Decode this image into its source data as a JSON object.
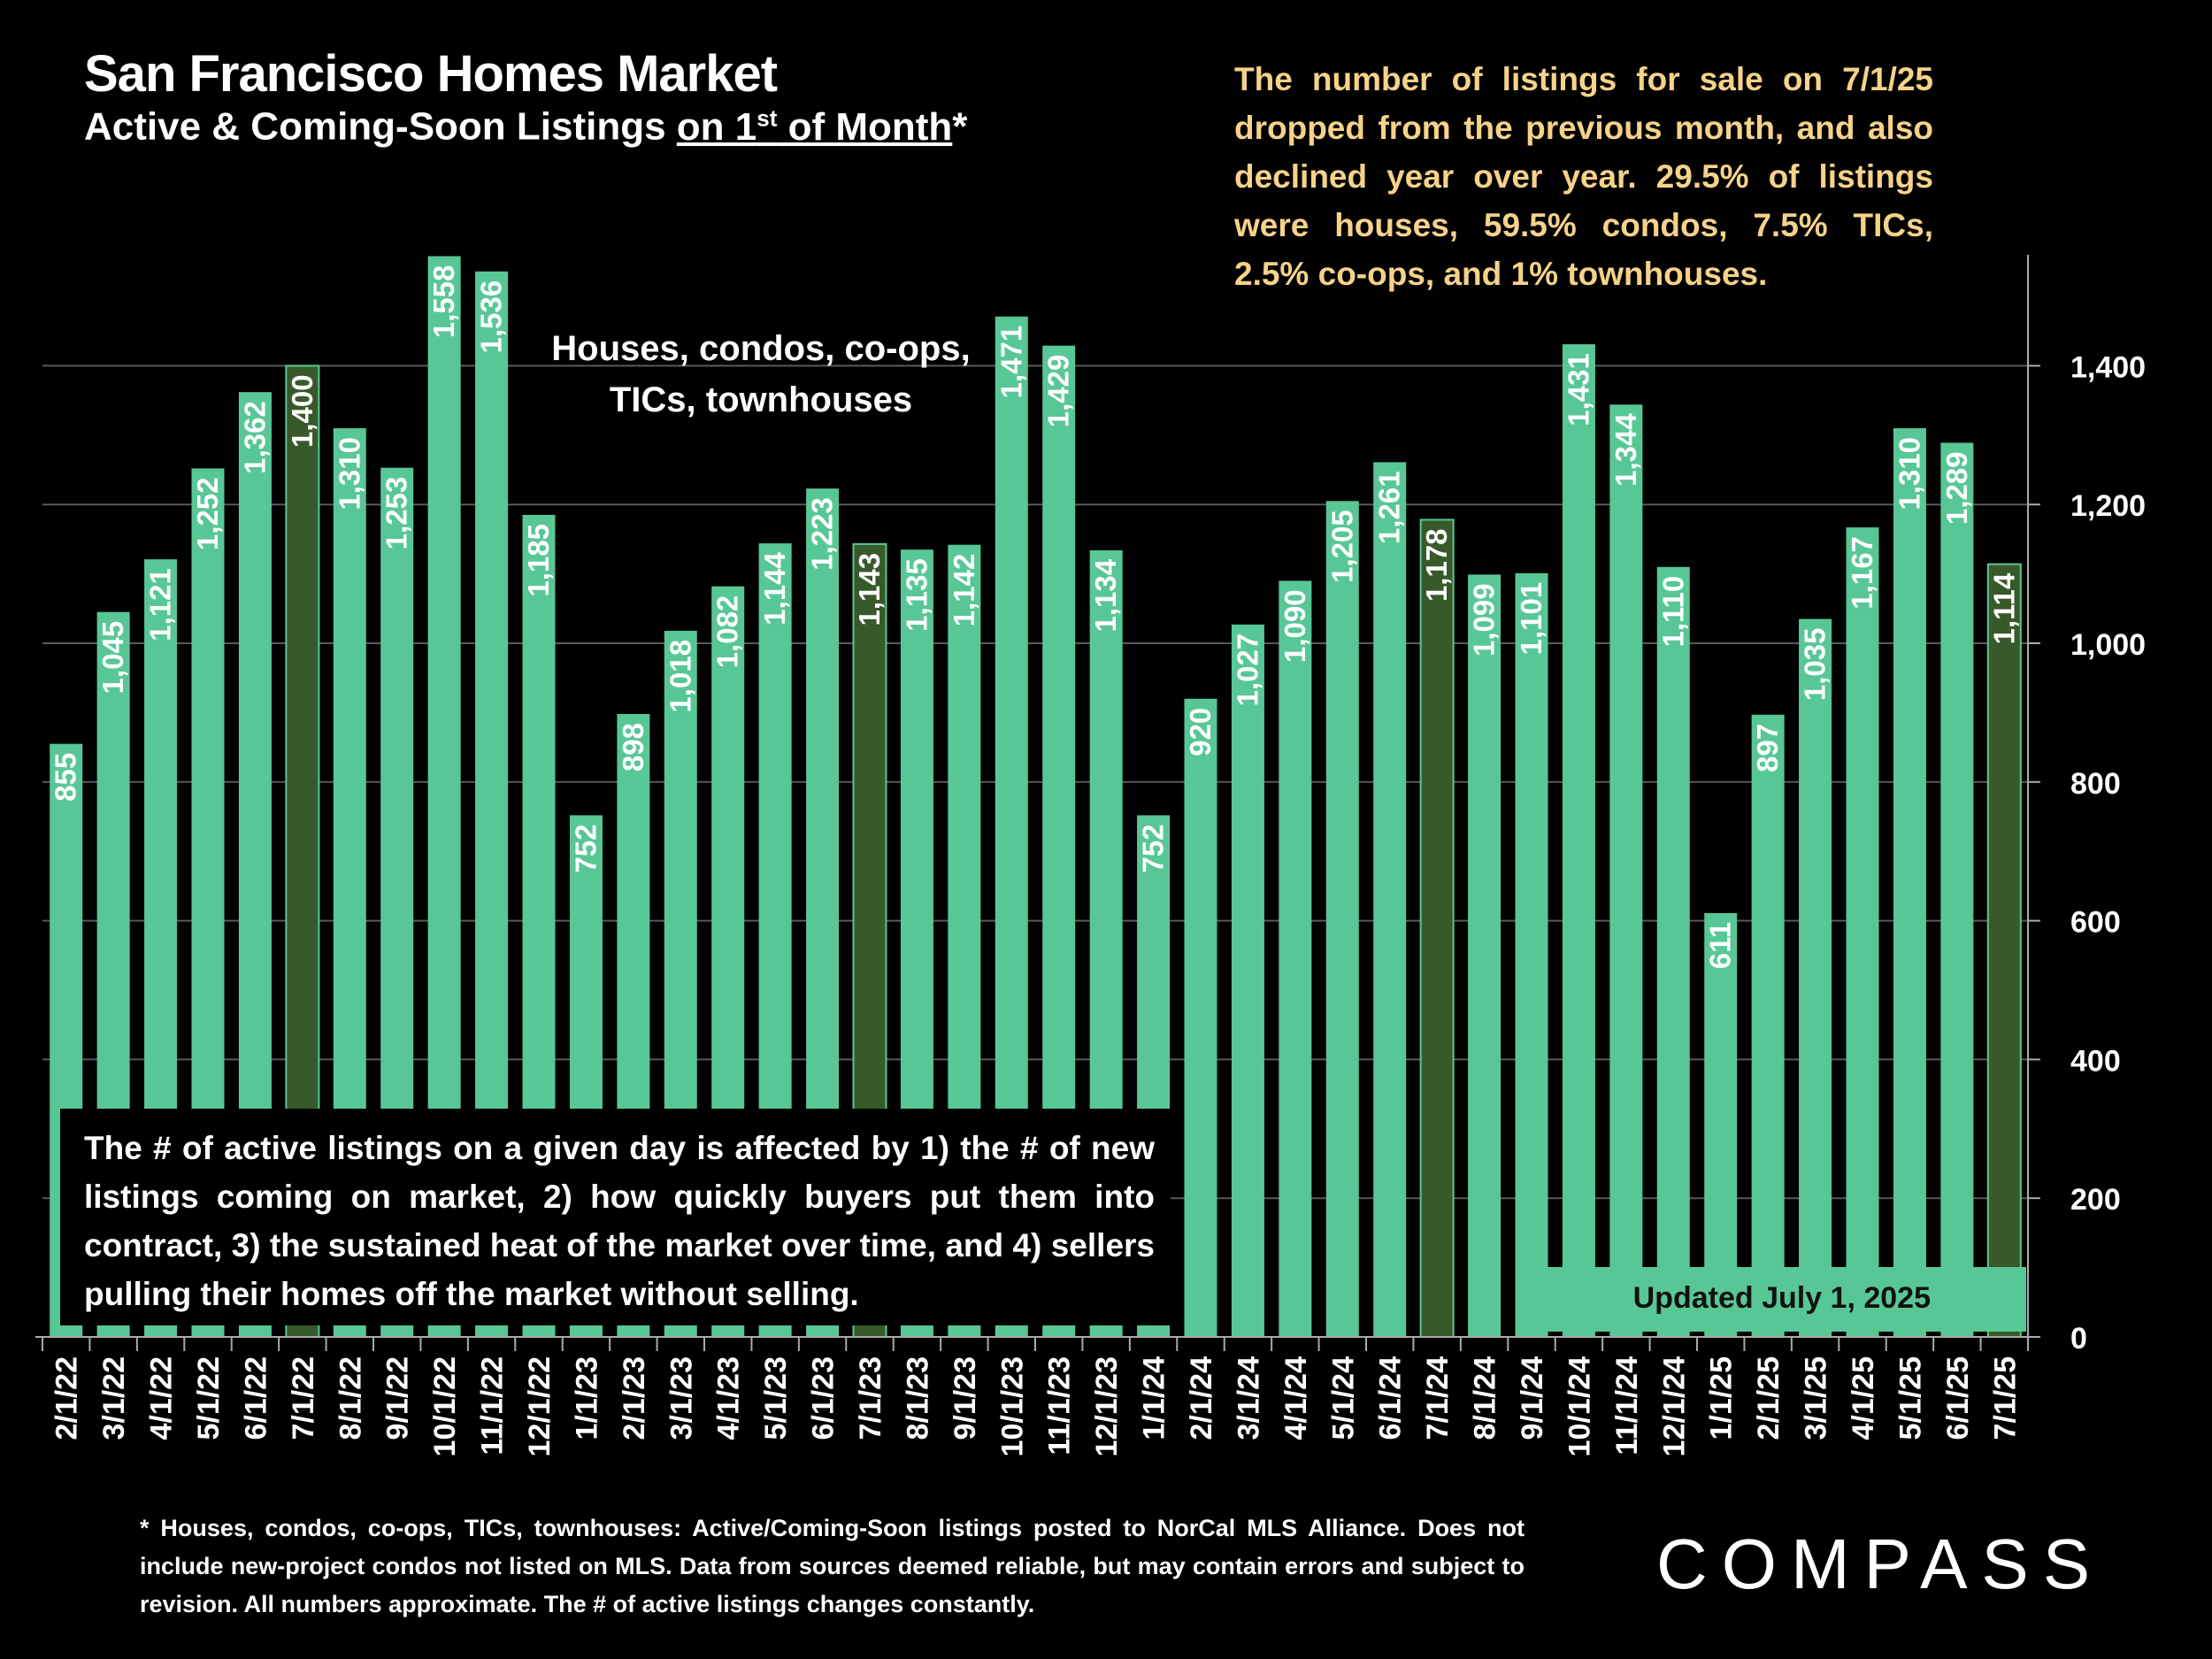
{
  "header": {
    "title": "San Francisco Homes Market",
    "subtitle_pre": "Active & Coming-Soon Listings ",
    "subtitle_under_a": "on 1",
    "subtitle_sup": "st",
    "subtitle_under_b": " of Month",
    "subtitle_post": "*"
  },
  "insight_text": "The number of listings for sale on 7/1/25 dropped from the previous month, and also declined year over year. 29.5% of listings were houses, 59.5% condos, 7.5% TICs, 2.5% co-ops, and 1% townhouses.",
  "series_note": {
    "line1": "Houses, condos, co-ops,",
    "line2": "TICs, townhouses"
  },
  "explain_text": "The # of active listings on a given day is affected by 1) the # of new listings coming on market, 2) how quickly buyers put them into contract, 3) the sustained heat of the market over time, and 4) sellers pulling their homes off the market without selling.",
  "updated_label": "Updated July 1, 2025",
  "footnote": "* Houses, condos, co-ops, TICs, townhouses: Active/Coming-Soon listings posted to NorCal MLS Alliance. Does not include new-project condos not listed on MLS. Data from sources deemed reliable, but may contain errors and subject to revision. All numbers approximate. The # of active listings changes constantly.",
  "logo_text": "COMPASS",
  "colors": {
    "bar": "#58c796",
    "highlight_bar": "#385a2a",
    "grid": "#595959",
    "insight": "#f6d28a"
  },
  "chart_data": {
    "type": "bar",
    "title": "San Francisco Homes Market",
    "ylabel": "Active & Coming-Soon Listings",
    "ylim": [
      0,
      1560
    ],
    "yticks": [
      0,
      200,
      400,
      600,
      800,
      1000,
      1200,
      1400
    ],
    "ytick_labels": [
      "0",
      "200",
      "400",
      "600",
      "800",
      "1,000",
      "1,200",
      "1,400"
    ],
    "categories": [
      "2/1/22",
      "3/1/22",
      "4/1/22",
      "5/1/22",
      "6/1/22",
      "7/1/22",
      "8/1/22",
      "9/1/22",
      "10/1/22",
      "11/1/22",
      "12/1/22",
      "1/1/23",
      "2/1/23",
      "3/1/23",
      "4/1/23",
      "5/1/23",
      "6/1/23",
      "7/1/23",
      "8/1/23",
      "9/1/23",
      "10/1/23",
      "11/1/23",
      "12/1/23",
      "1/1/24",
      "2/1/24",
      "3/1/24",
      "4/1/24",
      "5/1/24",
      "6/1/24",
      "7/1/24",
      "8/1/24",
      "9/1/24",
      "10/1/24",
      "11/1/24",
      "12/1/24",
      "1/1/25",
      "2/1/25",
      "3/1/25",
      "4/1/25",
      "5/1/25",
      "6/1/25",
      "7/1/25"
    ],
    "values": [
      855,
      1045,
      1121,
      1252,
      1362,
      1400,
      1310,
      1253,
      1558,
      1536,
      1185,
      752,
      898,
      1018,
      1082,
      1144,
      1223,
      1143,
      1135,
      1142,
      1471,
      1429,
      1134,
      752,
      920,
      1027,
      1090,
      1205,
      1261,
      1178,
      1099,
      1101,
      1431,
      1344,
      1110,
      611,
      897,
      1035,
      1167,
      1310,
      1289,
      1114
    ],
    "value_labels": [
      "855",
      "1,045",
      "1,121",
      "1,252",
      "1,362",
      "1,400",
      "1,310",
      "1,253",
      "1,558",
      "1,536",
      "1,185",
      "752",
      "898",
      "1,018",
      "1,082",
      "1,144",
      "1,223",
      "1,143",
      "1,135",
      "1,142",
      "1,471",
      "1,429",
      "1,134",
      "752",
      "920",
      "1,027",
      "1,090",
      "1,205",
      "1,261",
      "1,178",
      "1,099",
      "1,101",
      "1,431",
      "1,344",
      "1,110",
      "611",
      "897",
      "1,035",
      "1,167",
      "1,310",
      "1,289",
      "1,114"
    ],
    "highlighted": [
      "7/1/22",
      "7/1/23",
      "7/1/24",
      "7/1/25"
    ]
  }
}
